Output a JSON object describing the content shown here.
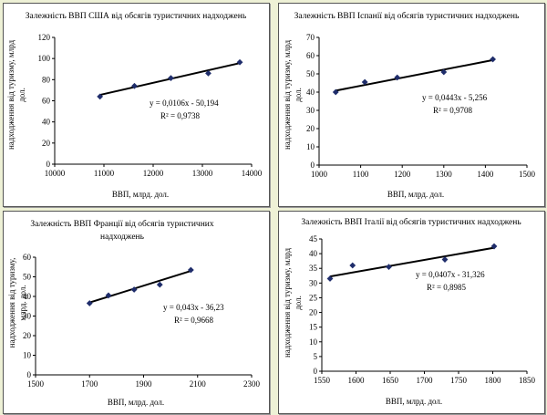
{
  "chart_data": [
    {
      "type": "scatter",
      "title": "Залежність ВВП США від обсягів туристичних надходжень",
      "xlabel": "ВВП, млрд. дол.",
      "ylabel": [
        "надходження від туризму, млрд",
        "дол."
      ],
      "xlim": [
        10000,
        14000
      ],
      "ylim": [
        0,
        120
      ],
      "x_ticks": [
        10000,
        11000,
        12000,
        13000,
        14000
      ],
      "y_ticks": [
        0,
        20,
        40,
        60,
        80,
        100,
        120
      ],
      "points": [
        [
          10920,
          64
        ],
        [
          11620,
          74
        ],
        [
          12360,
          81.5
        ],
        [
          13120,
          86
        ],
        [
          13760,
          96.5
        ]
      ],
      "trendline": {
        "x": [
          10920,
          13760
        ],
        "slope": 0.0106,
        "intercept": -50.194
      },
      "equation": "y = 0,0106x - 50,194",
      "r2": "R² = 0,9738",
      "grid": false,
      "legend": "none"
    },
    {
      "type": "scatter",
      "title": "Залежність ВВП Іспанії від обсягів туристичних надходжень",
      "xlabel": "ВВП, млрд. дол.",
      "ylabel": [
        "надходження від туризму, млрд",
        "дол."
      ],
      "xlim": [
        1000,
        1500
      ],
      "ylim": [
        0,
        70
      ],
      "x_ticks": [
        1000,
        1100,
        1200,
        1300,
        1400,
        1500
      ],
      "y_ticks": [
        0,
        10,
        20,
        30,
        40,
        50,
        60,
        70
      ],
      "points": [
        [
          1040,
          40
        ],
        [
          1110,
          45.5
        ],
        [
          1188,
          48
        ],
        [
          1300,
          51
        ],
        [
          1418,
          58
        ]
      ],
      "trendline": {
        "x": [
          1040,
          1418
        ],
        "slope": 0.0443,
        "intercept": -5.256
      },
      "equation": "y = 0,0443x - 5,256",
      "r2": "R² = 0,9708",
      "grid": false,
      "legend": "none"
    },
    {
      "type": "scatter",
      "title": [
        "Залежність ВВП Франції від обсягів туристичних",
        "надходжень"
      ],
      "xlabel": "ВВП, млрд. дол.",
      "ylabel": [
        "надходження від туризму,",
        "млрд. дол."
      ],
      "xlim": [
        1500,
        2300
      ],
      "ylim": [
        0,
        60
      ],
      "x_ticks": [
        1500,
        1700,
        1900,
        2100,
        2300
      ],
      "y_ticks": [
        0,
        10,
        20,
        30,
        40,
        50,
        60
      ],
      "points": [
        [
          1700,
          36.5
        ],
        [
          1770,
          40.5
        ],
        [
          1865,
          43.5
        ],
        [
          1960,
          46
        ],
        [
          2075,
          53.5
        ]
      ],
      "trendline": {
        "x": [
          1700,
          2075
        ],
        "slope": 0.043,
        "intercept": -36.23
      },
      "equation": "y = 0,043x - 36,23",
      "r2": "R² = 0,9668",
      "grid": false,
      "legend": "none"
    },
    {
      "type": "scatter",
      "title": "Залежність ВВП Італії від обсягів туристичних надходжень",
      "xlabel": "ВВП, млрд. дол.",
      "ylabel": [
        "надходження від туризму, млрд",
        "дол."
      ],
      "xlim": [
        1550,
        1850
      ],
      "ylim": [
        0,
        45
      ],
      "x_ticks": [
        1550,
        1600,
        1650,
        1700,
        1750,
        1800,
        1850
      ],
      "y_ticks": [
        0,
        5,
        10,
        15,
        20,
        25,
        30,
        35,
        40,
        45
      ],
      "points": [
        [
          1562,
          31.5
        ],
        [
          1595,
          36
        ],
        [
          1648,
          35.5
        ],
        [
          1730,
          38
        ],
        [
          1802,
          42.5
        ]
      ],
      "trendline": {
        "x": [
          1562,
          1802
        ],
        "slope": 0.0407,
        "intercept": -31.326
      },
      "equation": "y = 0,0407x - 31,326",
      "r2": "R² = 0,8985",
      "grid": false,
      "legend": "none"
    }
  ],
  "colors": {
    "background": "#eef1d6",
    "panel": "#ffffff",
    "marker": "#1f2d6b",
    "line": "#000000"
  }
}
